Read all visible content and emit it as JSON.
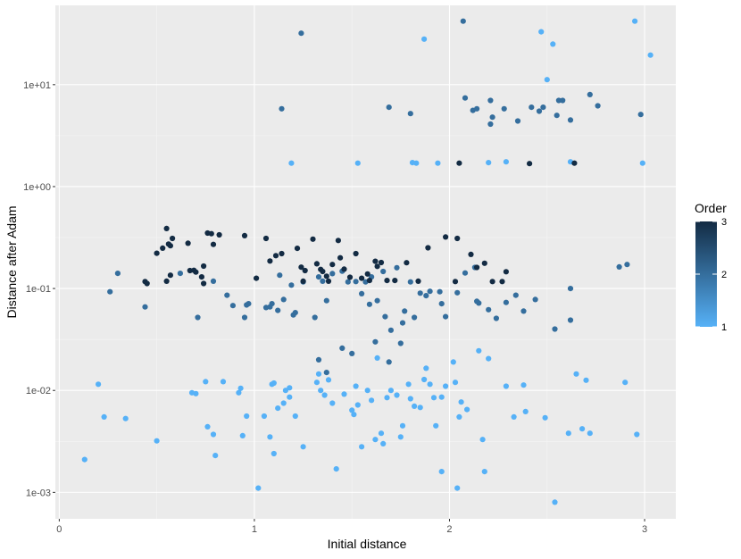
{
  "chart_data": {
    "type": "scatter",
    "title": "",
    "xlabel": "Initial distance",
    "ylabel": "Distance after Adam",
    "x_ticks": [
      0,
      1,
      2,
      3
    ],
    "x_tick_labels": [
      "0",
      "1",
      "2",
      "3"
    ],
    "xlim": [
      -0.02,
      3.16
    ],
    "y_scale": "log",
    "y_ticks": [
      0.001,
      0.01,
      0.1,
      1,
      10
    ],
    "y_tick_labels": [
      "1e-03",
      "1e-02",
      "1e-01",
      "1e+00",
      "1e+01"
    ],
    "ylim": [
      0.00055,
      60
    ],
    "grid": true,
    "legend": {
      "title": "Order",
      "placement": "right",
      "type": "colorbar",
      "min": 1,
      "max": 3,
      "breaks": [
        1,
        2,
        3
      ],
      "break_labels": [
        "1",
        "2",
        "3"
      ],
      "low_color": "#56B1F7",
      "high_color": "#132B43"
    },
    "colors": {
      "panel_background": "#EBEBEB",
      "grid_major": "#FFFFFF",
      "grid_minor": "#F5F5F5"
    },
    "series": [
      {
        "order": 1,
        "points": [
          [
            0.13,
            0.0021
          ],
          [
            0.2,
            0.0115
          ],
          [
            0.23,
            0.0055
          ],
          [
            0.34,
            0.0053
          ],
          [
            0.5,
            0.0032
          ],
          [
            0.68,
            0.0095
          ],
          [
            0.7,
            0.0093
          ],
          [
            0.75,
            0.0122
          ],
          [
            0.76,
            0.0044
          ],
          [
            0.79,
            0.0037
          ],
          [
            0.8,
            0.0023
          ],
          [
            0.84,
            0.0122
          ],
          [
            0.92,
            0.0095
          ],
          [
            0.93,
            0.0105
          ],
          [
            0.94,
            0.0036
          ],
          [
            0.96,
            0.0056
          ],
          [
            1.05,
            0.0056
          ],
          [
            1.08,
            0.0035
          ],
          [
            1.09,
            0.0115
          ],
          [
            1.1,
            0.0118
          ],
          [
            1.1,
            0.0024
          ],
          [
            1.12,
            0.0067
          ],
          [
            1.15,
            0.0075
          ],
          [
            1.16,
            0.01
          ],
          [
            1.18,
            0.0106
          ],
          [
            1.18,
            0.0086
          ],
          [
            1.21,
            0.0056
          ],
          [
            1.25,
            0.0028
          ],
          [
            1.32,
            0.012
          ],
          [
            1.33,
            0.0145
          ],
          [
            1.34,
            0.01
          ],
          [
            1.36,
            0.009
          ],
          [
            1.38,
            0.0127
          ],
          [
            1.4,
            0.0075
          ],
          [
            1.42,
            0.0017
          ],
          [
            1.46,
            0.0092
          ],
          [
            1.5,
            0.0064
          ],
          [
            1.51,
            0.0058
          ],
          [
            1.52,
            0.011
          ],
          [
            1.53,
            0.0072
          ],
          [
            1.55,
            0.0028
          ],
          [
            1.58,
            0.01
          ],
          [
            1.6,
            0.008
          ],
          [
            1.62,
            0.0033
          ],
          [
            1.63,
            0.0208
          ],
          [
            1.65,
            0.0038
          ],
          [
            1.66,
            0.003
          ],
          [
            1.68,
            0.0085
          ],
          [
            1.7,
            0.01
          ],
          [
            1.73,
            0.009
          ],
          [
            1.75,
            0.0035
          ],
          [
            1.76,
            0.0045
          ],
          [
            1.79,
            0.0115
          ],
          [
            1.8,
            0.0083
          ],
          [
            1.82,
            0.007
          ],
          [
            1.85,
            0.0068
          ],
          [
            1.87,
            0.0128
          ],
          [
            1.88,
            0.0165
          ],
          [
            1.9,
            0.0115
          ],
          [
            1.92,
            0.0085
          ],
          [
            1.93,
            0.0045
          ],
          [
            1.96,
            0.0016
          ],
          [
            1.96,
            0.0086
          ],
          [
            1.98,
            0.011
          ],
          [
            2.02,
            0.019
          ],
          [
            2.03,
            0.012
          ],
          [
            2.05,
            0.0055
          ],
          [
            2.06,
            0.0077
          ],
          [
            2.09,
            0.0065
          ],
          [
            2.15,
            0.0245
          ],
          [
            2.17,
            0.0033
          ],
          [
            2.18,
            0.0016
          ],
          [
            2.2,
            0.0205
          ],
          [
            2.29,
            0.011
          ],
          [
            2.33,
            0.0055
          ],
          [
            2.38,
            0.0113
          ],
          [
            2.39,
            0.0062
          ],
          [
            2.49,
            0.0054
          ],
          [
            2.54,
            0.0008
          ],
          [
            2.61,
            0.0038
          ],
          [
            2.65,
            0.0145
          ],
          [
            2.68,
            0.0042
          ],
          [
            2.7,
            0.0126
          ],
          [
            2.72,
            0.0038
          ],
          [
            2.9,
            0.012
          ],
          [
            2.96,
            0.0037
          ],
          [
            1.02,
            0.0011
          ],
          [
            2.04,
            0.0011
          ],
          [
            1.19,
            1.7
          ],
          [
            1.53,
            1.7
          ],
          [
            1.81,
            1.72
          ],
          [
            1.83,
            1.7
          ],
          [
            1.94,
            1.7
          ],
          [
            2.2,
            1.72
          ],
          [
            2.29,
            1.75
          ],
          [
            2.62,
            1.75
          ],
          [
            2.99,
            1.7
          ],
          [
            1.87,
            28.0
          ],
          [
            2.47,
            33.0
          ],
          [
            2.53,
            25.0
          ],
          [
            2.5,
            11.2
          ],
          [
            2.95,
            42.0
          ],
          [
            3.03,
            19.5
          ]
        ]
      },
      {
        "order": 2,
        "points": [
          [
            0.26,
            0.093
          ],
          [
            0.3,
            0.141
          ],
          [
            0.44,
            0.066
          ],
          [
            0.62,
            0.141
          ],
          [
            0.71,
            0.052
          ],
          [
            0.79,
            0.118
          ],
          [
            0.86,
            0.086
          ],
          [
            0.89,
            0.068
          ],
          [
            0.95,
            0.052
          ],
          [
            0.96,
            0.069
          ],
          [
            0.97,
            0.071
          ],
          [
            1.06,
            0.065
          ],
          [
            1.08,
            0.066
          ],
          [
            1.09,
            0.071
          ],
          [
            1.12,
            0.061
          ],
          [
            1.13,
            0.135
          ],
          [
            1.15,
            0.078
          ],
          [
            1.19,
            0.108
          ],
          [
            1.2,
            0.055
          ],
          [
            1.21,
            0.058
          ],
          [
            1.25,
            0.116
          ],
          [
            1.31,
            0.052
          ],
          [
            1.33,
            0.13
          ],
          [
            1.35,
            0.118
          ],
          [
            1.37,
            0.076
          ],
          [
            1.4,
            0.14
          ],
          [
            1.45,
            0.148
          ],
          [
            1.48,
            0.116
          ],
          [
            1.52,
            0.117
          ],
          [
            1.55,
            0.089
          ],
          [
            1.57,
            0.116
          ],
          [
            1.59,
            0.07
          ],
          [
            1.6,
            0.13
          ],
          [
            1.63,
            0.076
          ],
          [
            1.66,
            0.147
          ],
          [
            1.67,
            0.053
          ],
          [
            1.7,
            0.039
          ],
          [
            1.73,
            0.16
          ],
          [
            1.76,
            0.046
          ],
          [
            1.77,
            0.06
          ],
          [
            1.8,
            0.116
          ],
          [
            1.82,
            0.052
          ],
          [
            1.85,
            0.09
          ],
          [
            1.88,
            0.085
          ],
          [
            1.9,
            0.094
          ],
          [
            1.95,
            0.093
          ],
          [
            1.96,
            0.071
          ],
          [
            1.98,
            0.053
          ],
          [
            2.04,
            0.091
          ],
          [
            2.08,
            0.142
          ],
          [
            2.13,
            0.161
          ],
          [
            2.14,
            0.075
          ],
          [
            2.15,
            0.072
          ],
          [
            2.2,
            0.062
          ],
          [
            2.24,
            0.051
          ],
          [
            2.29,
            0.073
          ],
          [
            2.34,
            0.086
          ],
          [
            2.38,
            0.06
          ],
          [
            2.44,
            0.078
          ],
          [
            2.54,
            0.04
          ],
          [
            2.62,
            0.1
          ],
          [
            2.62,
            0.049
          ],
          [
            2.87,
            0.163
          ],
          [
            2.91,
            0.172
          ],
          [
            1.33,
            0.02
          ],
          [
            1.37,
            0.015
          ],
          [
            1.45,
            0.026
          ],
          [
            1.5,
            0.023
          ],
          [
            1.62,
            0.03
          ],
          [
            1.69,
            0.019
          ],
          [
            1.75,
            0.029
          ],
          [
            1.14,
            5.8
          ],
          [
            1.24,
            32.0
          ],
          [
            1.69,
            6.0
          ],
          [
            1.8,
            5.2
          ],
          [
            2.08,
            7.4
          ],
          [
            2.12,
            5.6
          ],
          [
            2.14,
            5.8
          ],
          [
            2.21,
            4.1
          ],
          [
            2.22,
            4.8
          ],
          [
            2.28,
            5.8
          ],
          [
            2.35,
            4.4
          ],
          [
            2.42,
            6.0
          ],
          [
            2.46,
            5.5
          ],
          [
            2.48,
            6.0
          ],
          [
            2.55,
            5.0
          ],
          [
            2.56,
            7.0
          ],
          [
            2.58,
            7.0
          ],
          [
            2.62,
            4.5
          ],
          [
            2.72,
            8.0
          ],
          [
            2.76,
            6.2
          ],
          [
            2.98,
            5.1
          ],
          [
            2.21,
            7.0
          ],
          [
            2.07,
            42.0
          ]
        ]
      },
      {
        "order": 3,
        "points": [
          [
            0.44,
            0.117
          ],
          [
            0.45,
            0.112
          ],
          [
            0.5,
            0.222
          ],
          [
            0.53,
            0.249
          ],
          [
            0.55,
            0.388
          ],
          [
            0.56,
            0.273
          ],
          [
            0.57,
            0.263
          ],
          [
            0.55,
            0.118
          ],
          [
            0.57,
            0.135
          ],
          [
            0.58,
            0.31
          ],
          [
            0.66,
            0.278
          ],
          [
            0.67,
            0.15
          ],
          [
            0.69,
            0.151
          ],
          [
            0.7,
            0.145
          ],
          [
            0.73,
            0.13
          ],
          [
            0.74,
            0.112
          ],
          [
            0.74,
            0.166
          ],
          [
            0.76,
            0.35
          ],
          [
            0.78,
            0.345
          ],
          [
            0.79,
            0.271
          ],
          [
            0.82,
            0.336
          ],
          [
            0.95,
            0.33
          ],
          [
            1.01,
            0.126
          ],
          [
            1.06,
            0.31
          ],
          [
            1.08,
            0.186
          ],
          [
            1.11,
            0.21
          ],
          [
            1.14,
            0.22
          ],
          [
            1.22,
            0.248
          ],
          [
            1.24,
            0.162
          ],
          [
            1.25,
            0.118
          ],
          [
            1.26,
            0.15
          ],
          [
            1.3,
            0.305
          ],
          [
            1.32,
            0.175
          ],
          [
            1.34,
            0.154
          ],
          [
            1.35,
            0.147
          ],
          [
            1.37,
            0.132
          ],
          [
            1.38,
            0.118
          ],
          [
            1.4,
            0.172
          ],
          [
            1.43,
            0.296
          ],
          [
            1.44,
            0.2
          ],
          [
            1.46,
            0.155
          ],
          [
            1.49,
            0.129
          ],
          [
            1.52,
            0.22
          ],
          [
            1.55,
            0.126
          ],
          [
            1.58,
            0.139
          ],
          [
            1.59,
            0.12
          ],
          [
            1.62,
            0.185
          ],
          [
            1.63,
            0.165
          ],
          [
            1.65,
            0.18
          ],
          [
            1.68,
            0.12
          ],
          [
            1.72,
            0.12
          ],
          [
            1.78,
            0.179
          ],
          [
            1.84,
            0.118
          ],
          [
            1.89,
            0.251
          ],
          [
            1.98,
            0.32
          ],
          [
            2.03,
            0.117
          ],
          [
            2.04,
            0.31
          ],
          [
            2.11,
            0.216
          ],
          [
            2.14,
            0.161
          ],
          [
            2.18,
            0.177
          ],
          [
            2.22,
            0.117
          ],
          [
            2.27,
            0.117
          ],
          [
            2.29,
            0.146
          ],
          [
            2.05,
            1.7
          ],
          [
            2.41,
            1.68
          ],
          [
            2.64,
            1.7
          ]
        ]
      }
    ]
  }
}
